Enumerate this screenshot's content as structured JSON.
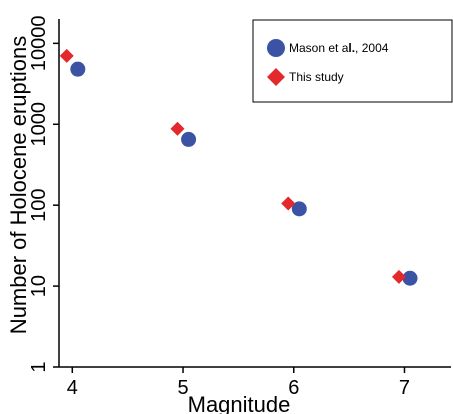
{
  "chart_data": {
    "type": "scatter",
    "xlabel": "Magnitude",
    "ylabel": "Number of Holocene eruptions",
    "xlim": [
      3.88,
      7.42
    ],
    "ylim": [
      1,
      20000
    ],
    "yscale": "log",
    "x_ticks": [
      4,
      5,
      6,
      7
    ],
    "x_tick_labels": [
      "4",
      "5",
      "6",
      "7"
    ],
    "y_ticks": [
      1,
      10,
      100,
      1000,
      10000
    ],
    "y_tick_labels": [
      "1",
      "10",
      "100",
      "1000",
      "10000"
    ],
    "grid": false,
    "legend_position": "top-right",
    "series": [
      {
        "name": "Mason et al., 2004",
        "name_prefix": "Mason et a",
        "name_bold": "l.",
        "name_suffix": ", 2004",
        "marker": "circle",
        "color": "#3a53a4",
        "points": [
          {
            "x": 4.05,
            "y": 4800
          },
          {
            "x": 5.05,
            "y": 650
          },
          {
            "x": 6.05,
            "y": 90
          },
          {
            "x": 7.05,
            "y": 12.5
          }
        ]
      },
      {
        "name": "This study",
        "marker": "diamond",
        "color": "#e3292b",
        "points": [
          {
            "x": 3.95,
            "y": 7000
          },
          {
            "x": 4.95,
            "y": 880
          },
          {
            "x": 5.95,
            "y": 105
          },
          {
            "x": 6.95,
            "y": 13
          }
        ]
      }
    ]
  }
}
